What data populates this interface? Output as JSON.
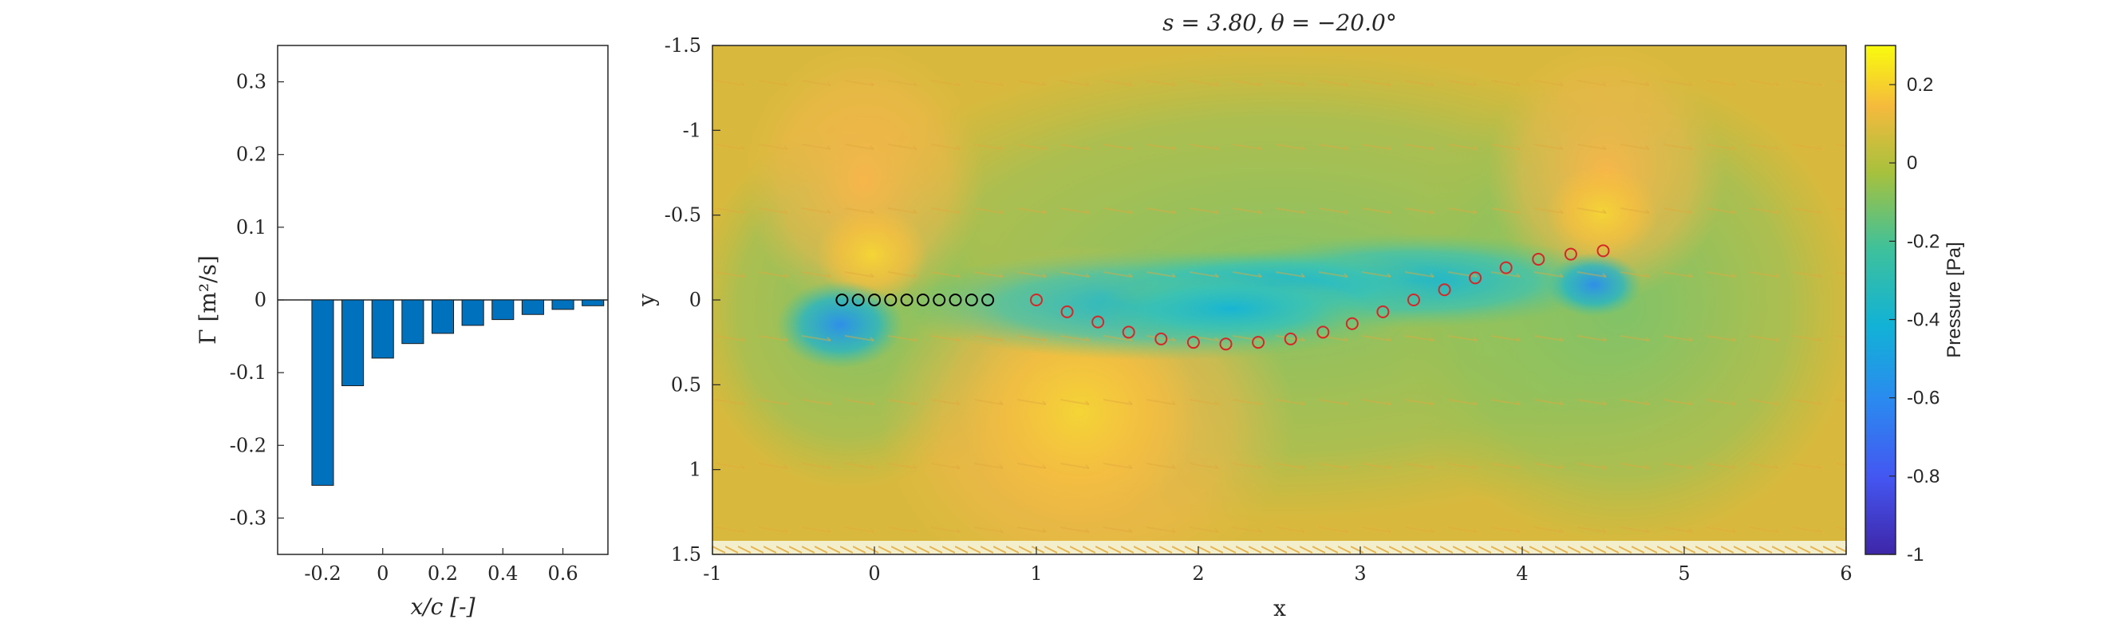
{
  "chart_data": [
    {
      "type": "bar",
      "xlabel": "x/c [-]",
      "ylabel": "Γ [m²/s]",
      "xlim": [
        -0.35,
        0.75
      ],
      "ylim": [
        -0.35,
        0.35
      ],
      "xticks": [
        "-0.2",
        "0",
        "0.2",
        "0.4",
        "0.6"
      ],
      "yticks": [
        "0.3",
        "0.2",
        "0.1",
        "0",
        "-0.1",
        "-0.2",
        "-0.3"
      ],
      "x": [
        -0.2,
        -0.1,
        0.0,
        0.1,
        0.2,
        0.3,
        0.4,
        0.5,
        0.6,
        0.7
      ],
      "values": [
        -0.255,
        -0.118,
        -0.08,
        -0.06,
        -0.046,
        -0.035,
        -0.027,
        -0.02,
        -0.013,
        -0.008
      ],
      "bar_color": "#0072BD",
      "grid": false
    },
    {
      "type": "heatmap",
      "title": "s = 3.80, θ = −20.0°",
      "xlabel": "x",
      "ylabel": "y",
      "xlim": [
        -1,
        6
      ],
      "ylim": [
        -1.5,
        1.5
      ],
      "y_reversed": true,
      "xticks": [
        "-1",
        "0",
        "1",
        "2",
        "3",
        "4",
        "5",
        "6"
      ],
      "yticks": [
        "-1.5",
        "-1",
        "-0.5",
        "0",
        "0.5",
        "1",
        "1.5"
      ],
      "colorbar": {
        "label": "Pressure [Pa]",
        "range": [
          -1,
          0.3
        ],
        "ticks": [
          "0.2",
          "0",
          "-0.2",
          "-0.4",
          "-0.6",
          "-0.8",
          "-1"
        ],
        "colormap": "parula"
      },
      "foil_points": {
        "x": [
          -0.2,
          -0.1,
          0.0,
          0.1,
          0.2,
          0.3,
          0.4,
          0.5,
          0.6,
          0.7
        ],
        "y": [
          0,
          0,
          0,
          0,
          0,
          0,
          0,
          0,
          0,
          0
        ],
        "color": "#000000"
      },
      "wake_points": {
        "x": [
          1.0,
          1.19,
          1.38,
          1.57,
          1.77,
          1.97,
          2.17,
          2.37,
          2.57,
          2.77,
          2.95,
          3.14,
          3.33,
          3.52,
          3.71,
          3.9,
          4.1,
          4.3,
          4.5
        ],
        "y": [
          0.0,
          0.07,
          0.13,
          0.19,
          0.23,
          0.25,
          0.26,
          0.25,
          0.23,
          0.19,
          0.14,
          0.07,
          0.0,
          -0.06,
          -0.13,
          -0.19,
          -0.24,
          -0.27,
          -0.29
        ],
        "color": "#D62728"
      }
    }
  ]
}
